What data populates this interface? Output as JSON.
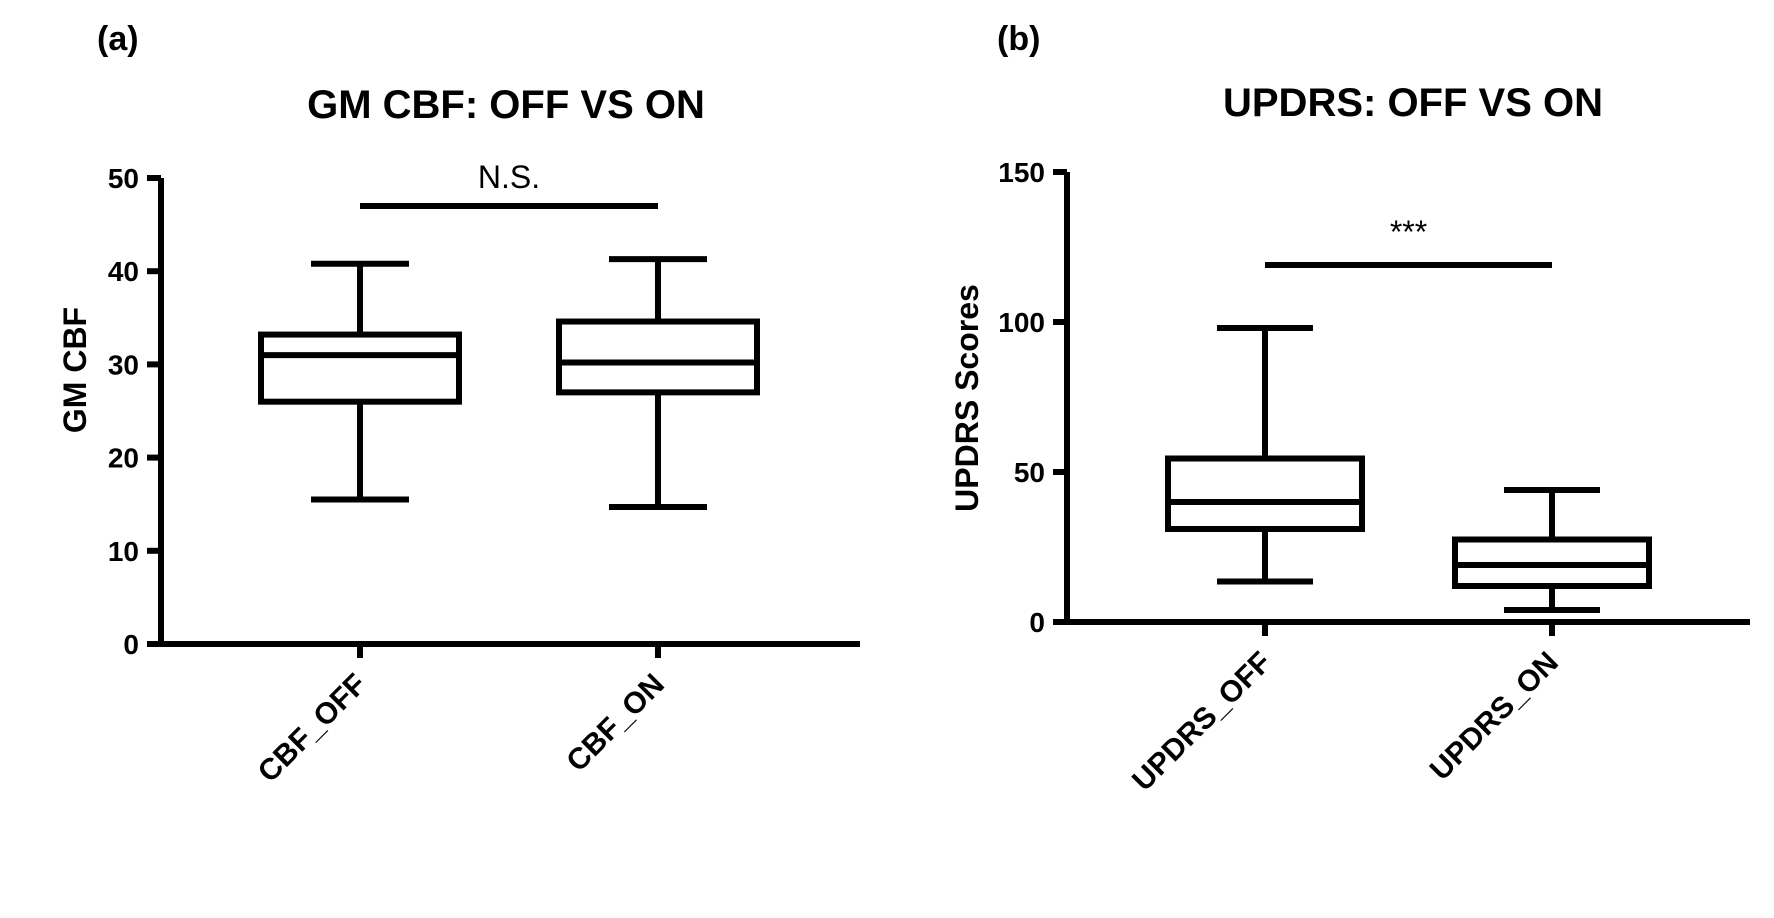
{
  "chart_data": [
    {
      "type": "box",
      "panel_label": "(a)",
      "title": "GM CBF: OFF VS ON",
      "ylabel": "GM CBF",
      "xlabel": "",
      "ylim": [
        0,
        50
      ],
      "yticks": [
        "0",
        "10",
        "20",
        "30",
        "40",
        "50"
      ],
      "categories": [
        "CBF_OFF",
        "CBF_ON"
      ],
      "boxes": [
        {
          "name": "CBF_OFF",
          "min": 15.5,
          "q1": 26,
          "median": 31,
          "q3": 33.2,
          "max": 40.8
        },
        {
          "name": "CBF_ON",
          "min": 14.7,
          "q1": 27,
          "median": 30.2,
          "q3": 34.6,
          "max": 41.3
        }
      ],
      "significance": {
        "label": "N.S.",
        "y": 47,
        "from": "CBF_OFF",
        "to": "CBF_ON"
      }
    },
    {
      "type": "box",
      "panel_label": "(b)",
      "title": "UPDRS: OFF VS ON",
      "ylabel": "UPDRS Scores",
      "xlabel": "",
      "ylim": [
        0,
        150
      ],
      "yticks": [
        "0",
        "50",
        "100",
        "150"
      ],
      "categories": [
        "UPDRS_OFF",
        "UPDRS_ON"
      ],
      "boxes": [
        {
          "name": "UPDRS_OFF",
          "min": 13.5,
          "q1": 31,
          "median": 40,
          "q3": 54.5,
          "max": 98
        },
        {
          "name": "UPDRS_ON",
          "min": 4,
          "q1": 12,
          "median": 19,
          "q3": 27.5,
          "max": 44
        }
      ],
      "significance": {
        "label": "***",
        "y": 119,
        "from": "UPDRS_OFF",
        "to": "UPDRS_ON"
      }
    }
  ]
}
